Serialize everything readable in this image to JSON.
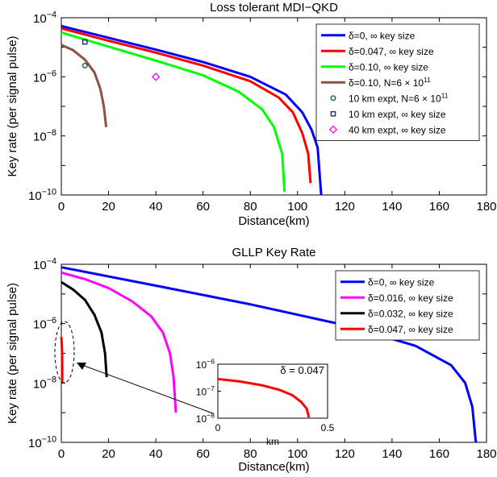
{
  "chart_data": [
    {
      "type": "line",
      "title": "Loss tolerant MDI−QKD",
      "xlabel": "Distance(km)",
      "ylabel": "Key rate (per signal pulse)",
      "yscale": "log",
      "xlim": [
        0,
        180
      ],
      "ylim_exponent": [
        -10,
        -4
      ],
      "xticks": [
        "0",
        "20",
        "40",
        "60",
        "80",
        "100",
        "120",
        "140",
        "160",
        "180"
      ],
      "yticks": [
        {
          "base": "10",
          "exp": "−10"
        },
        {
          "base": "10",
          "exp": "−8"
        },
        {
          "base": "10",
          "exp": "−6"
        },
        {
          "base": "10",
          "exp": "−4"
        }
      ],
      "legend_position": "top-right",
      "series": [
        {
          "name_parts": [
            "δ=0, ∞ key size"
          ],
          "color": "#0000ff",
          "points": [
            [
              0,
              -4.28
            ],
            [
              20,
              -4.68
            ],
            [
              40,
              -5.08
            ],
            [
              60,
              -5.5
            ],
            [
              80,
              -6.0
            ],
            [
              95,
              -6.6
            ],
            [
              102,
              -7.2
            ],
            [
              106,
              -7.8
            ],
            [
              108.5,
              -8.4
            ],
            [
              110,
              -10
            ]
          ]
        },
        {
          "name_parts": [
            "δ=0.047, ∞ key size"
          ],
          "color": "#ff0000",
          "points": [
            [
              0,
              -4.36
            ],
            [
              20,
              -4.78
            ],
            [
              40,
              -5.18
            ],
            [
              60,
              -5.62
            ],
            [
              80,
              -6.15
            ],
            [
              92,
              -6.7
            ],
            [
              98,
              -7.2
            ],
            [
              102,
              -7.9
            ],
            [
              104.5,
              -8.6
            ],
            [
              105.5,
              -9.6
            ]
          ]
        },
        {
          "name_parts": [
            "δ=0.10, ∞ key size"
          ],
          "color": "#00ff00",
          "points": [
            [
              0,
              -4.5
            ],
            [
              20,
              -4.98
            ],
            [
              40,
              -5.45
            ],
            [
              60,
              -5.95
            ],
            [
              75,
              -6.5
            ],
            [
              85,
              -7.1
            ],
            [
              90,
              -7.7
            ],
            [
              93.5,
              -8.6
            ],
            [
              94.5,
              -9.9
            ]
          ]
        },
        {
          "name_parts": [
            "δ=0.10, N=6 × 10",
            "11"
          ],
          "color": "#8c5241",
          "points": [
            [
              0,
              -4.92
            ],
            [
              5,
              -5.1
            ],
            [
              10,
              -5.42
            ],
            [
              14,
              -5.85
            ],
            [
              16.5,
              -6.4
            ],
            [
              18,
              -7.0
            ],
            [
              19,
              -7.7
            ]
          ]
        }
      ],
      "markers": [
        {
          "name_parts": [
            "10 km expt, N=6 × 10",
            "11"
          ],
          "marker": "circle",
          "color": "#1f5e4f",
          "x": 10,
          "y_exponent": -5.62
        },
        {
          "name_parts": [
            "10 km expt, ∞ key size"
          ],
          "marker": "square",
          "color": "#1a2f80",
          "x": 10,
          "y_exponent": -4.82
        },
        {
          "name_parts": [
            "40 km expt, ∞ key size"
          ],
          "marker": "diamond",
          "color": "#ff00ff",
          "x": 40,
          "y_exponent": -6.0
        }
      ]
    },
    {
      "type": "line",
      "title": "GLLP Key Rate",
      "xlabel": "Distance(km)",
      "ylabel": "Key rate (per signal pulse)",
      "yscale": "log",
      "xlim": [
        0,
        180
      ],
      "ylim_exponent": [
        -10,
        -4
      ],
      "xticks": [
        "0",
        "20",
        "40",
        "60",
        "80",
        "100",
        "120",
        "140",
        "160",
        "180"
      ],
      "yticks": [
        {
          "base": "10",
          "exp": "−10"
        },
        {
          "base": "10",
          "exp": "−8"
        },
        {
          "base": "10",
          "exp": "−6"
        },
        {
          "base": "10",
          "exp": "−4"
        }
      ],
      "legend_position": "top-right",
      "series": [
        {
          "name_parts": [
            "δ=0, ∞ key size"
          ],
          "color": "#0000ff",
          "points": [
            [
              0,
              -4.1
            ],
            [
              40,
              -4.72
            ],
            [
              80,
              -5.35
            ],
            [
              120,
              -6.05
            ],
            [
              150,
              -6.75
            ],
            [
              165,
              -7.4
            ],
            [
              171,
              -8.0
            ],
            [
              174,
              -8.8
            ],
            [
              175.5,
              -10
            ]
          ]
        },
        {
          "name_parts": [
            "δ=0.016, ∞ key size"
          ],
          "color": "#ff00ff",
          "points": [
            [
              0,
              -4.28
            ],
            [
              10,
              -4.5
            ],
            [
              20,
              -4.8
            ],
            [
              30,
              -5.25
            ],
            [
              38,
              -5.75
            ],
            [
              43,
              -6.3
            ],
            [
              46,
              -7.0
            ],
            [
              47.5,
              -7.8
            ],
            [
              48.5,
              -9.0
            ]
          ]
        },
        {
          "name_parts": [
            "δ=0.032, ∞ key size"
          ],
          "color": "#000000",
          "points": [
            [
              0,
              -4.6
            ],
            [
              5,
              -4.85
            ],
            [
              10,
              -5.2
            ],
            [
              14,
              -5.7
            ],
            [
              17,
              -6.3
            ],
            [
              18.5,
              -7.0
            ],
            [
              19.2,
              -7.8
            ]
          ]
        },
        {
          "name_parts": [
            "δ=0.047, ∞ key size"
          ],
          "color": "#ff0000",
          "points": [
            [
              0,
              -6.45
            ],
            [
              0.15,
              -6.6
            ],
            [
              0.3,
              -6.95
            ],
            [
              0.38,
              -7.4
            ],
            [
              0.42,
              -7.95
            ]
          ]
        }
      ],
      "inset": {
        "annotation": "δ = 0.047",
        "xlabel": "km",
        "xlim": [
          0,
          0.5
        ],
        "ylim_exponent": [
          -8,
          -6
        ],
        "xticks": [
          "0",
          "0.5"
        ],
        "yticks": [
          {
            "base": "10",
            "exp": "−8"
          },
          {
            "base": "10",
            "exp": "−7"
          },
          {
            "base": "10",
            "exp": "−6"
          }
        ],
        "series": {
          "color": "#ff0000",
          "points": [
            [
              0,
              -6.55
            ],
            [
              0.1,
              -6.64
            ],
            [
              0.2,
              -6.78
            ],
            [
              0.28,
              -6.95
            ],
            [
              0.34,
              -7.15
            ],
            [
              0.38,
              -7.4
            ],
            [
              0.405,
              -7.65
            ],
            [
              0.415,
              -7.97
            ]
          ]
        }
      }
    }
  ]
}
